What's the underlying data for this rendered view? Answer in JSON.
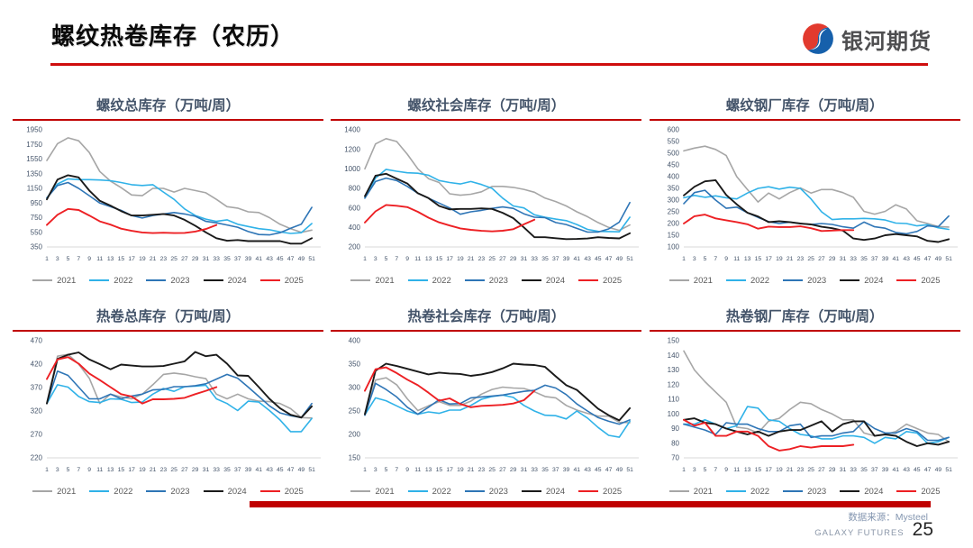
{
  "header": {
    "title": "螺纹热卷库存（农历）",
    "accent_color": "#c00000"
  },
  "brand": {
    "name": "银河期货",
    "logo_colors": {
      "red": "#e23a2e",
      "blue": "#1660ab"
    }
  },
  "footer": {
    "source": "数据来源：Mysteel",
    "brand": "GALAXY FUTURES",
    "page": "25"
  },
  "legend": {
    "years": [
      "2021",
      "2022",
      "2023",
      "2024",
      "2025"
    ],
    "colors": {
      "2021": "#a6a6a6",
      "2022": "#30b2e8",
      "2023": "#2e75b6",
      "2024": "#1a1a1a",
      "2025": "#ed2024"
    },
    "position": "bottom"
  },
  "x_axis": {
    "unit": "week",
    "range": [
      1,
      52
    ],
    "ticks": [
      1,
      3,
      5,
      7,
      9,
      11,
      13,
      15,
      17,
      19,
      21,
      23,
      25,
      27,
      29,
      31,
      33,
      35,
      37,
      39,
      41,
      43,
      45,
      47,
      49,
      51
    ],
    "note": "values sampled at odd lunar-calendar weeks; 2025 series ends near week 33"
  },
  "chart_data": [
    {
      "type": "line",
      "title": "螺纹总库存（万吨/周）",
      "ylim": [
        350,
        1950
      ],
      "ystep": 200,
      "grid": false,
      "series": [
        {
          "name": "2021",
          "values": [
            1530,
            1760,
            1840,
            1800,
            1640,
            1380,
            1250,
            1160,
            1060,
            1050,
            1150,
            1150,
            1100,
            1150,
            1120,
            1090,
            1000,
            900,
            880,
            830,
            820,
            750,
            660,
            600,
            550,
            580
          ]
        },
        {
          "name": "2022",
          "values": [
            1020,
            1210,
            1280,
            1270,
            1270,
            1265,
            1255,
            1230,
            1200,
            1190,
            1200,
            1100,
            1000,
            870,
            780,
            730,
            700,
            720,
            660,
            630,
            600,
            585,
            555,
            535,
            545,
            670
          ]
        },
        {
          "name": "2023",
          "values": [
            1020,
            1190,
            1230,
            1150,
            1050,
            950,
            900,
            850,
            780,
            745,
            780,
            800,
            820,
            800,
            770,
            700,
            680,
            650,
            620,
            560,
            520,
            515,
            545,
            605,
            660,
            890
          ]
        },
        {
          "name": "2024",
          "values": [
            1000,
            1270,
            1330,
            1300,
            1120,
            980,
            915,
            840,
            780,
            780,
            790,
            800,
            780,
            720,
            640,
            550,
            470,
            435,
            445,
            430,
            430,
            430,
            430,
            395,
            395,
            470
          ]
        },
        {
          "name": "2025",
          "values": [
            650,
            790,
            870,
            855,
            780,
            700,
            655,
            600,
            570,
            548,
            540,
            545,
            540,
            542,
            560,
            595,
            650
          ]
        }
      ]
    },
    {
      "type": "line",
      "title": "螺纹社会库存（万吨/周）",
      "ylim": [
        200,
        1400
      ],
      "ystep": 200,
      "grid": false,
      "series": [
        {
          "name": "2021",
          "values": [
            1000,
            1255,
            1310,
            1280,
            1150,
            1000,
            900,
            860,
            745,
            730,
            740,
            765,
            820,
            820,
            810,
            790,
            760,
            700,
            665,
            620,
            560,
            510,
            450,
            400,
            370,
            425
          ]
        },
        {
          "name": "2022",
          "values": [
            700,
            905,
            995,
            975,
            960,
            955,
            935,
            880,
            860,
            845,
            870,
            840,
            800,
            700,
            620,
            600,
            530,
            505,
            485,
            470,
            430,
            380,
            360,
            358,
            355,
            505
          ]
        },
        {
          "name": "2023",
          "values": [
            700,
            870,
            905,
            880,
            820,
            750,
            700,
            650,
            600,
            535,
            560,
            575,
            595,
            610,
            595,
            540,
            505,
            500,
            450,
            430,
            390,
            352,
            352,
            385,
            455,
            655
          ]
        },
        {
          "name": "2024",
          "values": [
            720,
            930,
            950,
            900,
            850,
            750,
            700,
            620,
            585,
            590,
            590,
            595,
            590,
            550,
            495,
            400,
            300,
            300,
            290,
            280,
            282,
            287,
            300,
            292,
            288,
            340
          ]
        },
        {
          "name": "2025",
          "values": [
            450,
            565,
            630,
            622,
            608,
            560,
            500,
            452,
            420,
            390,
            375,
            365,
            360,
            366,
            382,
            432,
            480
          ]
        }
      ]
    },
    {
      "type": "line",
      "title": "螺纹钢厂库存（万吨/周）",
      "ylim": [
        100,
        600
      ],
      "ystep": 50,
      "grid": false,
      "series": [
        {
          "name": "2021",
          "values": [
            510,
            522,
            530,
            516,
            490,
            400,
            345,
            292,
            330,
            305,
            332,
            352,
            330,
            345,
            345,
            332,
            312,
            252,
            240,
            252,
            280,
            262,
            212,
            200,
            187,
            185
          ]
        },
        {
          "name": "2022",
          "values": [
            310,
            320,
            312,
            318,
            310,
            305,
            330,
            350,
            357,
            347,
            355,
            350,
            305,
            250,
            217,
            220,
            220,
            222,
            220,
            215,
            202,
            200,
            190,
            195,
            182,
            175
          ]
        },
        {
          "name": "2023",
          "values": [
            285,
            332,
            342,
            300,
            265,
            270,
            246,
            226,
            208,
            200,
            206,
            200,
            196,
            200,
            196,
            186,
            180,
            206,
            186,
            180,
            162,
            156,
            166,
            190,
            186,
            232
          ]
        },
        {
          "name": "2024",
          "values": [
            320,
            357,
            380,
            385,
            322,
            282,
            246,
            230,
            206,
            210,
            206,
            200,
            196,
            186,
            180,
            170,
            136,
            130,
            136,
            150,
            155,
            150,
            145,
            126,
            121,
            133
          ]
        },
        {
          "name": "2025",
          "values": [
            200,
            231,
            238,
            222,
            214,
            206,
            197,
            178,
            187,
            185,
            185,
            188,
            180,
            168,
            170,
            172,
            172
          ]
        }
      ]
    },
    {
      "type": "line",
      "title": "热卷总库存（万吨/周）",
      "ylim": [
        220,
        470
      ],
      "ystep": 50,
      "grid": false,
      "series": [
        {
          "name": "2021",
          "values": [
            337,
            437,
            441,
            420,
            390,
            336,
            356,
            350,
            346,
            356,
            376,
            398,
            401,
            398,
            393,
            389,
            356,
            346,
            356,
            346,
            341,
            340,
            336,
            325,
            306,
            305
          ]
        },
        {
          "name": "2022",
          "values": [
            336,
            376,
            371,
            351,
            340,
            338,
            346,
            345,
            338,
            339,
            356,
            368,
            362,
            372,
            373,
            375,
            346,
            336,
            321,
            341,
            339,
            321,
            301,
            276,
            276,
            304
          ]
        },
        {
          "name": "2023",
          "values": [
            336,
            405,
            396,
            371,
            346,
            346,
            356,
            346,
            352,
            356,
            365,
            366,
            372,
            372,
            374,
            378,
            388,
            398,
            390,
            371,
            351,
            331,
            316,
            310,
            306,
            336
          ]
        },
        {
          "name": "2024",
          "values": [
            336,
            431,
            440,
            445,
            430,
            420,
            409,
            419,
            417,
            415,
            415,
            416,
            421,
            426,
            446,
            437,
            440,
            421,
            396,
            395,
            371,
            346,
            326,
            312,
            306,
            330
          ]
        },
        {
          "name": "2025",
          "values": [
            388,
            430,
            435,
            421,
            400,
            386,
            371,
            356,
            351,
            336,
            345,
            345,
            346,
            348,
            356,
            363,
            371
          ]
        }
      ]
    },
    {
      "type": "line",
      "title": "热卷社会库存（万吨/周）",
      "ylim": [
        150,
        400
      ],
      "ystep": 50,
      "grid": false,
      "series": [
        {
          "name": "2021",
          "values": [
            245,
            316,
            321,
            306,
            276,
            251,
            261,
            270,
            262,
            262,
            271,
            286,
            296,
            301,
            299,
            298,
            291,
            281,
            278,
            262,
            252,
            245,
            239,
            239,
            226,
            225
          ]
        },
        {
          "name": "2022",
          "values": [
            242,
            278,
            272,
            261,
            250,
            243,
            248,
            245,
            252,
            252,
            262,
            275,
            281,
            284,
            279,
            262,
            250,
            241,
            240,
            233,
            250,
            235,
            215,
            198,
            194,
            228
          ]
        },
        {
          "name": "2023",
          "values": [
            241,
            309,
            296,
            280,
            258,
            243,
            258,
            274,
            265,
            266,
            278,
            280,
            282,
            284,
            288,
            292,
            294,
            305,
            299,
            285,
            265,
            250,
            236,
            228,
            222,
            231
          ]
        },
        {
          "name": "2024",
          "values": [
            243,
            336,
            351,
            346,
            340,
            334,
            328,
            332,
            330,
            329,
            325,
            328,
            333,
            341,
            351,
            349,
            348,
            344,
            324,
            305,
            295,
            275,
            255,
            241,
            230,
            256
          ]
        },
        {
          "name": "2025",
          "values": [
            293,
            339,
            343,
            331,
            317,
            305,
            289,
            272,
            277,
            265,
            258,
            261,
            262,
            263,
            266,
            273,
            293
          ]
        }
      ]
    },
    {
      "type": "line",
      "title": "热卷钢厂库存（万吨/周）",
      "ylim": [
        70,
        150
      ],
      "ystep": 10,
      "grid": false,
      "series": [
        {
          "name": "2021",
          "values": [
            143,
            130,
            122,
            115,
            108,
            91,
            90,
            87,
            95,
            97,
            103,
            108,
            107,
            103,
            100,
            96,
            96,
            87,
            85,
            86,
            88,
            93,
            90,
            87,
            86,
            81
          ]
        },
        {
          "name": "2022",
          "values": [
            93,
            93,
            96,
            93,
            90,
            92,
            105,
            104,
            96,
            95,
            90,
            86,
            85,
            83,
            83,
            85,
            85,
            84,
            80,
            84,
            83,
            88,
            87,
            80,
            81,
            84
          ]
        },
        {
          "name": "2023",
          "values": [
            93,
            91,
            89,
            86,
            94,
            93,
            93,
            90,
            88,
            88,
            92,
            93,
            84,
            85,
            85,
            87,
            88,
            95,
            90,
            87,
            87,
            90,
            88,
            82,
            82,
            84
          ]
        },
        {
          "name": "2024",
          "values": [
            96,
            97,
            94,
            93,
            90,
            88,
            86,
            88,
            85,
            88,
            89,
            89,
            92,
            95,
            88,
            93,
            95,
            95,
            85,
            86,
            85,
            81,
            78,
            80,
            79,
            81
          ]
        },
        {
          "name": "2025",
          "values": [
            96,
            92,
            94,
            85,
            85,
            88,
            88,
            85,
            78,
            75,
            76,
            78,
            77,
            78,
            78,
            78,
            79
          ]
        }
      ]
    }
  ]
}
